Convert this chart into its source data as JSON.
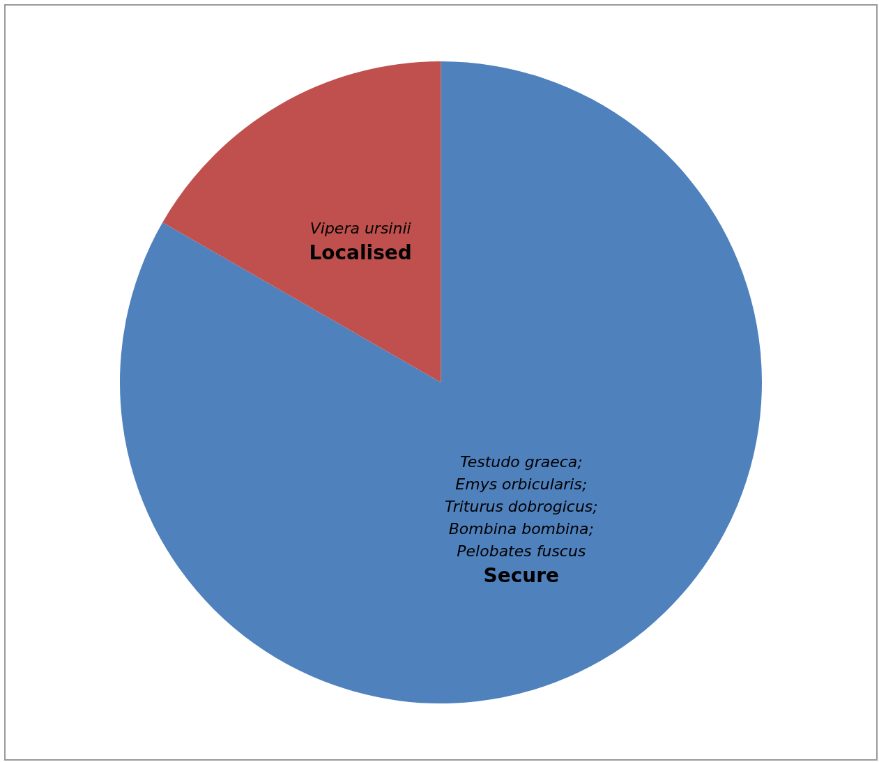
{
  "chart_data": {
    "type": "pie",
    "categories": [
      "Secure",
      "Localised"
    ],
    "values": [
      83.3,
      16.7
    ],
    "colors": [
      "#4f81bd",
      "#c0504d"
    ],
    "annotations": [
      "Testudo graeca; Emys orbicularis; Triturus dobrogicus; Bombina bombina; Pelobates fuscus",
      "Vipera ursinii"
    ],
    "legend": false
  }
}
